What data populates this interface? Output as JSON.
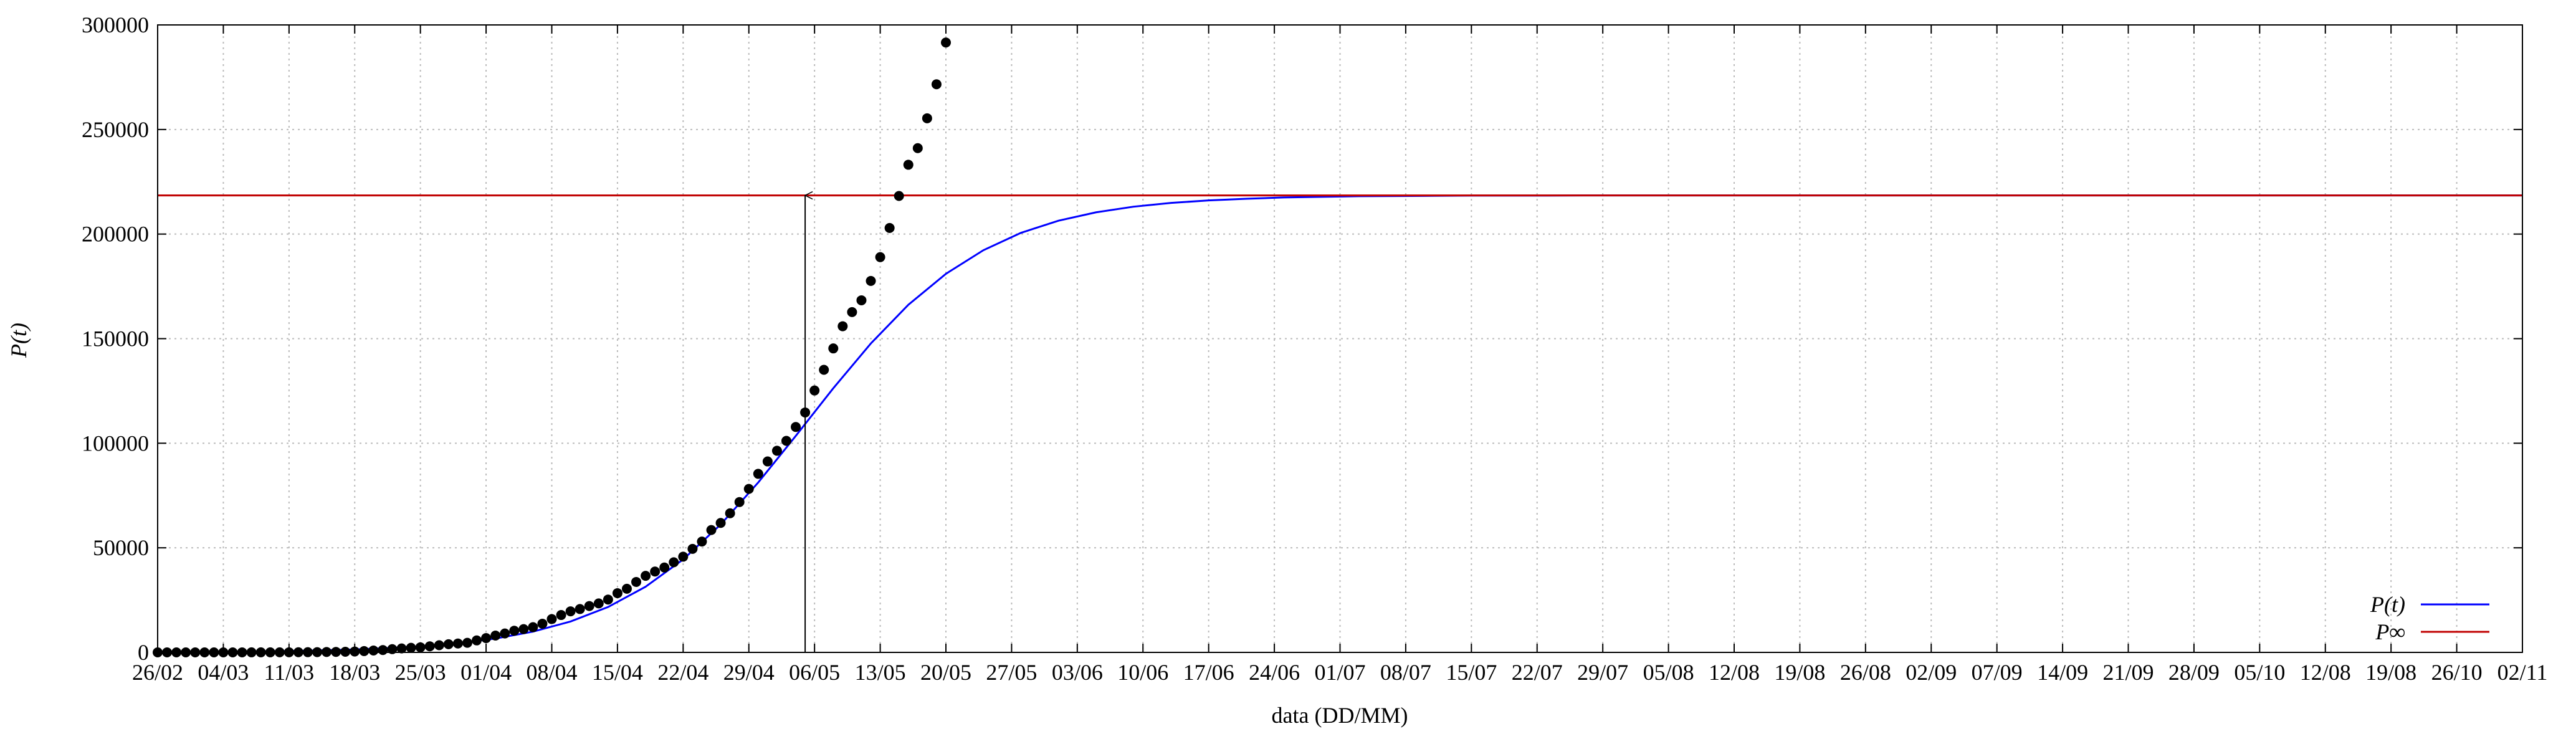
{
  "chart_data": {
    "type": "logistic-fit",
    "xlabel": "data (DD/MM)",
    "ylabel": "P(t)",
    "xlim": [
      0,
      252
    ],
    "ylim": [
      0,
      300000
    ],
    "yticks": [
      0,
      50000,
      100000,
      150000,
      200000,
      250000,
      300000
    ],
    "xticks": [
      {
        "value": 0,
        "label": "26/02"
      },
      {
        "value": 7,
        "label": "04/03"
      },
      {
        "value": 14,
        "label": "11/03"
      },
      {
        "value": 21,
        "label": "18/03"
      },
      {
        "value": 28,
        "label": "25/03"
      },
      {
        "value": 35,
        "label": "01/04"
      },
      {
        "value": 42,
        "label": "08/04"
      },
      {
        "value": 49,
        "label": "15/04"
      },
      {
        "value": 56,
        "label": "22/04"
      },
      {
        "value": 63,
        "label": "29/04"
      },
      {
        "value": 70,
        "label": "06/05"
      },
      {
        "value": 77,
        "label": "13/05"
      },
      {
        "value": 84,
        "label": "20/05"
      },
      {
        "value": 91,
        "label": "27/05"
      },
      {
        "value": 98,
        "label": "03/06"
      },
      {
        "value": 105,
        "label": "10/06"
      },
      {
        "value": 112,
        "label": "17/06"
      },
      {
        "value": 119,
        "label": "24/06"
      },
      {
        "value": 126,
        "label": "01/07"
      },
      {
        "value": 133,
        "label": "08/07"
      },
      {
        "value": 140,
        "label": "15/07"
      },
      {
        "value": 147,
        "label": "22/07"
      },
      {
        "value": 154,
        "label": "29/07"
      },
      {
        "value": 161,
        "label": "05/08"
      },
      {
        "value": 168,
        "label": "12/08"
      },
      {
        "value": 175,
        "label": "19/08"
      },
      {
        "value": 182,
        "label": "26/08"
      },
      {
        "value": 189,
        "label": "02/09"
      },
      {
        "value": 196,
        "label": "07/09"
      },
      {
        "value": 203,
        "label": "14/09"
      },
      {
        "value": 210,
        "label": "21/09"
      },
      {
        "value": 217,
        "label": "28/09"
      },
      {
        "value": 224,
        "label": "05/10"
      },
      {
        "value": 231,
        "label": "12/08"
      },
      {
        "value": 238,
        "label": "19/08"
      },
      {
        "value": 245,
        "label": "26/10"
      },
      {
        "value": 252,
        "label": "02/11"
      }
    ],
    "grid": true,
    "legend": "lower right",
    "points": {
      "color": "#000000",
      "x": [
        0,
        1,
        2,
        3,
        4,
        5,
        6,
        7,
        8,
        9,
        10,
        11,
        12,
        13,
        14,
        15,
        16,
        17,
        18,
        19,
        20,
        21,
        22,
        23,
        24,
        25,
        26,
        27,
        28,
        29,
        30,
        31,
        32,
        33,
        34,
        35,
        36,
        37,
        38,
        39,
        40,
        41,
        42,
        43,
        44,
        45,
        46,
        47,
        48,
        49,
        50,
        51,
        52,
        53,
        54,
        55,
        56,
        57,
        58,
        59,
        60,
        61,
        62,
        63,
        64,
        65,
        66,
        67,
        68,
        69,
        70,
        71,
        72,
        73,
        74,
        75,
        76,
        77,
        78,
        79,
        80,
        81,
        82,
        83,
        84
      ],
      "values": [
        1,
        1,
        1,
        2,
        2,
        2,
        2,
        3,
        8,
        13,
        19,
        25,
        25,
        34,
        52,
        77,
        98,
        121,
        200,
        234,
        291,
        428,
        621,
        904,
        1128,
        1546,
        1891,
        2201,
        2433,
        2915,
        3417,
        3904,
        4256,
        4579,
        5717,
        6836,
        8044,
        9056,
        10360,
        11130,
        12056,
        13717,
        15927,
        17857,
        19638,
        20727,
        22169,
        23430,
        25262,
        28320,
        30425,
        33682,
        36599,
        38654,
        40581,
        43079,
        45757,
        49492,
        52995,
        58509,
        61888,
        66501,
        71886,
        78162,
        85380,
        91299,
        96396,
        101147,
        107780,
        114715,
        125218,
        135106,
        145328,
        155939,
        162699,
        168331,
        177589,
        188974,
        202918,
        218223,
        233142,
        241080,
        255368,
        271628,
        291579
      ]
    },
    "series": [
      {
        "name": "P(t)",
        "color": "#0000ff",
        "x": [
          0,
          4,
          8,
          12,
          16,
          20,
          24,
          28,
          32,
          36,
          40,
          44,
          48,
          52,
          56,
          60,
          64,
          68,
          72,
          76,
          80,
          84,
          88,
          92,
          96,
          100,
          104,
          108,
          112,
          116,
          120,
          124,
          128,
          132,
          136,
          140,
          144,
          148,
          152,
          156,
          160,
          164,
          168,
          172,
          176,
          180,
          184,
          188,
          192,
          196,
          200,
          204,
          208,
          212,
          216,
          220,
          224,
          228,
          232,
          236,
          240,
          244,
          248,
          252
        ],
        "values": [
          156,
          237,
          361,
          548,
          834,
          1266,
          1922,
          2910,
          4396,
          6620,
          9930,
          14760,
          21700,
          31390,
          44450,
          61150,
          81230,
          103500,
          126300,
          147700,
          166200,
          181000,
          192300,
          200600,
          206400,
          210400,
          213100,
          214900,
          216100,
          216900,
          217500,
          217800,
          218100,
          218200,
          218300,
          218400,
          218400,
          218400,
          218500,
          218500,
          218500,
          218500,
          218500,
          218500,
          218500,
          218500,
          218500,
          218500,
          218500,
          218500,
          218500,
          218500,
          218500,
          218500,
          218500,
          218500,
          218500,
          218500,
          218500,
          218500,
          218500,
          218500,
          218500,
          218500
        ]
      },
      {
        "name": "P∞",
        "color": "#c00000",
        "x": [
          0,
          252
        ],
        "values": [
          218500,
          218500
        ]
      }
    ],
    "arrow": {
      "x": 69,
      "y_from": 0,
      "y_to": 218500
    }
  }
}
